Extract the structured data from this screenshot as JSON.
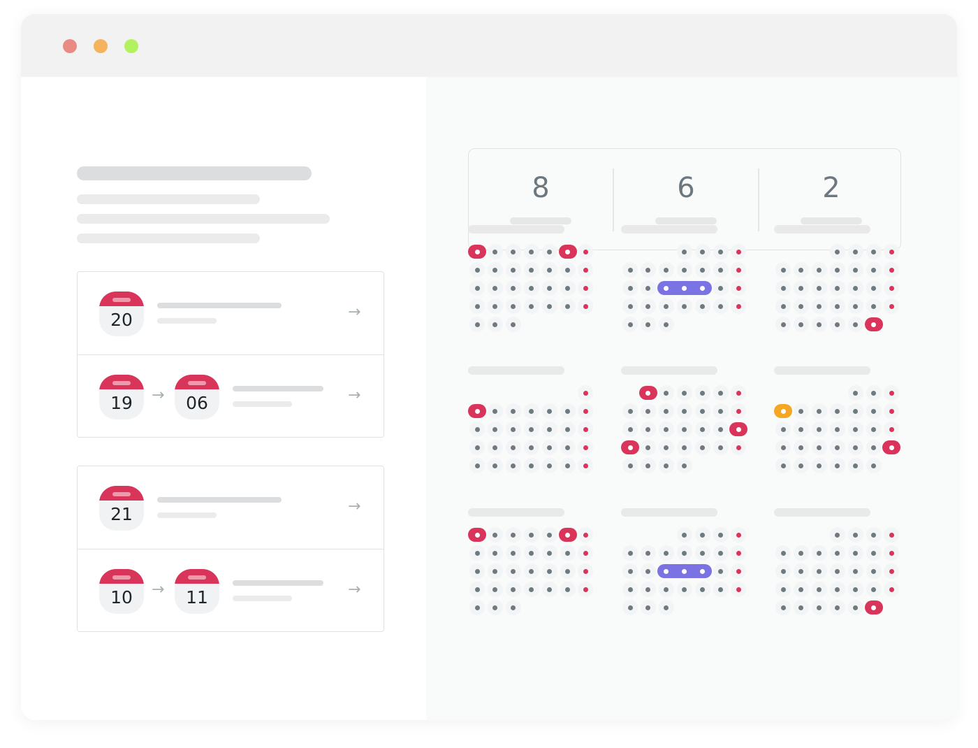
{
  "window": {
    "controls": [
      {
        "name": "close",
        "color": "#ea8a84"
      },
      {
        "name": "minimize",
        "color": "#f5b35e"
      },
      {
        "name": "maximize",
        "color": "#b1f25e"
      }
    ]
  },
  "colors": {
    "accent_red": "#d9345a",
    "range_purple": "#7b73e3",
    "orange": "#f5a623",
    "dot_gray": "#6f7a80"
  },
  "groups": [
    {
      "items": [
        {
          "dates": [
            "20"
          ]
        },
        {
          "dates": [
            "19",
            "06"
          ]
        }
      ]
    },
    {
      "items": [
        {
          "dates": [
            "21"
          ]
        },
        {
          "dates": [
            "10",
            "11"
          ]
        }
      ]
    }
  ],
  "stats": [
    {
      "value": "8"
    },
    {
      "value": "6"
    },
    {
      "value": "2"
    }
  ],
  "months": [
    {
      "offset": 0,
      "days": 31,
      "highlights": [
        1,
        6
      ],
      "range": null,
      "orange": []
    },
    {
      "offset": 3,
      "days": 28,
      "highlights": [],
      "range": [
        14,
        16
      ],
      "orange": []
    },
    {
      "offset": 3,
      "days": 31,
      "highlights": [
        31
      ],
      "range": null,
      "orange": []
    },
    {
      "offset": 6,
      "days": 29,
      "highlights": [
        2
      ],
      "range": null,
      "orange": []
    },
    {
      "offset": 1,
      "days": 31,
      "highlights": [
        1,
        20,
        21
      ],
      "range": null,
      "orange": []
    },
    {
      "offset": 4,
      "days": 30,
      "highlights": [
        24
      ],
      "range": null,
      "orange": [
        4
      ]
    },
    {
      "offset": 0,
      "days": 31,
      "highlights": [
        1,
        6
      ],
      "range": null,
      "orange": []
    },
    {
      "offset": 3,
      "days": 28,
      "highlights": [],
      "range": [
        14,
        16
      ],
      "orange": []
    },
    {
      "offset": 3,
      "days": 31,
      "highlights": [
        31
      ],
      "range": null,
      "orange": []
    }
  ]
}
